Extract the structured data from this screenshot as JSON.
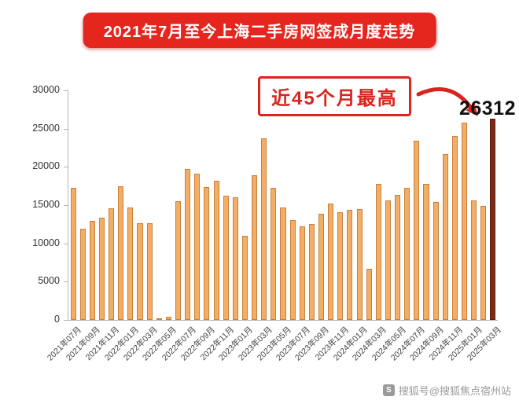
{
  "banner": {
    "title": "2021年7月至今上海二手房网签成月度走势"
  },
  "annotation": {
    "label": "近45个月最高"
  },
  "peak": {
    "value_label": "26312"
  },
  "watermark": {
    "icon_glyph": "S",
    "text": "搜狐号@搜狐焦点宿州站"
  },
  "colors": {
    "banner_bg": "#e5261f",
    "annotation_red": "#d9251d",
    "bar_fill": "#f2ae66",
    "bar_border": "#c9803c",
    "highlight_fill": "#7e2b16",
    "highlight_border": "#551c0e",
    "axis": "#b4b4b4",
    "peak_text": "#111111"
  },
  "chart_data": {
    "type": "bar",
    "title": "2021年7月至今上海二手房网签成月度走势",
    "xlabel": "",
    "ylabel": "",
    "ylim": [
      0,
      30000
    ],
    "yticks": [
      0,
      5000,
      10000,
      15000,
      20000,
      25000,
      30000
    ],
    "grid": false,
    "legend": "none",
    "x_tick_step": 2,
    "highlight_index": 44,
    "annotation": "近45个月最高",
    "peak_value": 26312,
    "categories": [
      "2021年07月",
      "2021年08月",
      "2021年09月",
      "2021年10月",
      "2021年11月",
      "2021年12月",
      "2022年01月",
      "2022年02月",
      "2022年03月",
      "2022年04月",
      "2022年05月",
      "2022年06月",
      "2022年07月",
      "2022年08月",
      "2022年09月",
      "2022年10月",
      "2022年11月",
      "2022年12月",
      "2023年01月",
      "2023年02月",
      "2023年03月",
      "2023年04月",
      "2023年05月",
      "2023年06月",
      "2023年07月",
      "2023年08月",
      "2023年09月",
      "2023年10月",
      "2023年11月",
      "2023年12月",
      "2024年01月",
      "2024年02月",
      "2024年03月",
      "2024年04月",
      "2024年05月",
      "2024年06月",
      "2024年07月",
      "2024年08月",
      "2024年09月",
      "2024年10月",
      "2024年11月",
      "2024年12月",
      "2025年01月",
      "2025年02月",
      "2025年03月"
    ],
    "values": [
      17300,
      11900,
      12900,
      13400,
      14600,
      17500,
      14700,
      12600,
      12600,
      200,
      400,
      15500,
      19700,
      19100,
      17400,
      18200,
      16200,
      16000,
      11000,
      18900,
      23700,
      17300,
      14700,
      13000,
      12200,
      12500,
      13900,
      15200,
      14100,
      14400,
      14500,
      6700,
      17800,
      15600,
      16300,
      17300,
      23400,
      17800,
      15400,
      21700,
      24000,
      25800,
      15600,
      14900,
      26312
    ]
  }
}
